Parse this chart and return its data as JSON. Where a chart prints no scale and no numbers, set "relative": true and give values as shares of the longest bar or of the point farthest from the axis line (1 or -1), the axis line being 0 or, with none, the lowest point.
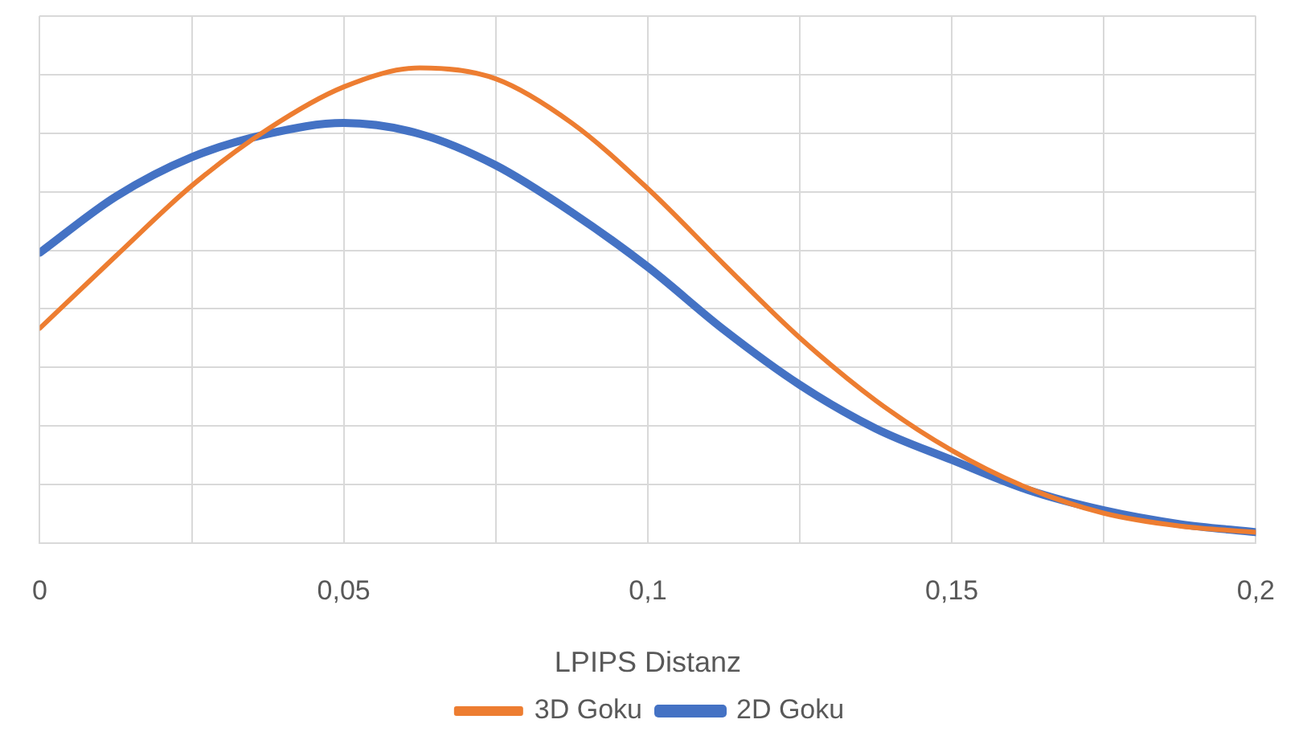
{
  "chart_data": {
    "type": "line",
    "xlabel": "LPIPS Distanz",
    "relative": true,
    "x": [
      0,
      0.0125,
      0.025,
      0.0375,
      0.05,
      0.0625,
      0.075,
      0.0875,
      0.1,
      0.1125,
      0.125,
      0.1375,
      0.15,
      0.1625,
      0.175,
      0.1875,
      0.2
    ],
    "xlim": [
      0,
      0.2
    ],
    "xticks": [
      0,
      {
        "value": 0.025,
        "label": null
      },
      {
        "value": 0.05,
        "label": "0,05"
      },
      {
        "value": 0.075,
        "label": null
      },
      {
        "value": 0.1,
        "label": "0,1"
      },
      {
        "value": 0.125,
        "label": null
      },
      {
        "value": 0.15,
        "label": "0,15"
      },
      {
        "value": 0.175,
        "label": null
      },
      {
        "value": 0.2,
        "label": "0,2"
      }
    ],
    "series": [
      {
        "name": "3D Goku",
        "color": "#ed7d31",
        "values": [
          0.452,
          0.604,
          0.752,
          0.871,
          0.96,
          1,
          0.977,
          0.884,
          0.746,
          0.587,
          0.432,
          0.3,
          0.195,
          0.116,
          0.063,
          0.036,
          0.023
        ]
      },
      {
        "name": "2D Goku",
        "color": "#4472c4",
        "values": [
          0.611,
          0.729,
          0.812,
          0.861,
          0.884,
          0.861,
          0.795,
          0.696,
          0.581,
          0.449,
          0.333,
          0.241,
          0.175,
          0.112,
          0.069,
          0.04,
          0.023
        ]
      }
    ],
    "grid": true,
    "legend": "bottom",
    "marker": "none",
    "line_style": "solid",
    "tick_labels": "x"
  }
}
